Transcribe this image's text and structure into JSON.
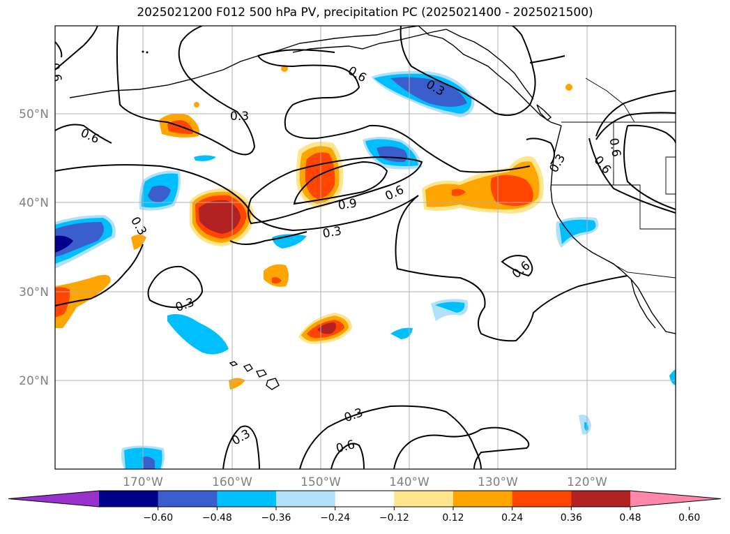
{
  "title": "2025021200 F012 500 hPa PV, precipitation PC (2025021400 - 2025021500)",
  "lat_labels": [
    "50°N",
    "40°N",
    "30°N",
    "20°N"
  ],
  "lon_labels": [
    "170°W",
    "160°W",
    "150°W",
    "140°W",
    "130°W",
    "120°W"
  ],
  "colorbar": {
    "ticks": [
      "−0.60",
      "−0.48",
      "−0.36",
      "−0.24",
      "−0.12",
      "0.12",
      "0.24",
      "0.36",
      "0.48",
      "0.60"
    ],
    "colors": [
      "#9932cc",
      "#00008b",
      "#3a5fcd",
      "#00bfff",
      "#b0e0fa",
      "#ffffff",
      "#ffe68c",
      "#ffa500",
      "#ff4500",
      "#b22222",
      "#ff88aa"
    ]
  },
  "contour_labels": [
    "0.6",
    "0.6",
    "0.3",
    "0.6",
    "0.3",
    "0.9",
    "0.6",
    "0.3",
    "0.6",
    "0.6",
    "0.3",
    "0.3",
    "0.6",
    "0.3",
    "0.3",
    "0.3",
    "0.3",
    "0.6"
  ]
}
